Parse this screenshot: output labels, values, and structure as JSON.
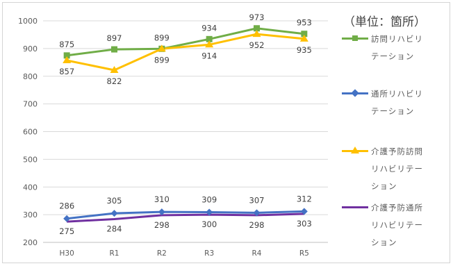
{
  "unit_label": "（単位：箇所）",
  "colors": {
    "visit_rehab": "#70ad47",
    "day_rehab": "#4472c4",
    "prev_visit_rehab": "#ffc000",
    "prev_day_rehab": "#7030a0"
  },
  "chart_data": {
    "type": "line",
    "categories": [
      "H30",
      "R1",
      "R2",
      "R3",
      "R4",
      "R5"
    ],
    "ylim": [
      200,
      1000
    ],
    "yticks": [
      "200",
      "300",
      "400",
      "500",
      "600",
      "700",
      "800",
      "900",
      "1000"
    ],
    "grid": true,
    "legend_position": "right",
    "series": [
      {
        "name": "訪問リハビリテーション",
        "values": [
          875,
          897,
          899,
          934,
          973,
          953
        ],
        "marker": "square"
      },
      {
        "name": "通所リハビリテーション",
        "values": [
          286,
          305,
          310,
          309,
          307,
          312
        ],
        "marker": "diamond"
      },
      {
        "name": "介護予防訪問リハビリテーション",
        "values": [
          857,
          822,
          899,
          914,
          952,
          935
        ],
        "marker": "triangle"
      },
      {
        "name": "介護予防通所リハビリテーション",
        "values": [
          275,
          284,
          298,
          300,
          298,
          303
        ],
        "marker": "none"
      }
    ]
  }
}
